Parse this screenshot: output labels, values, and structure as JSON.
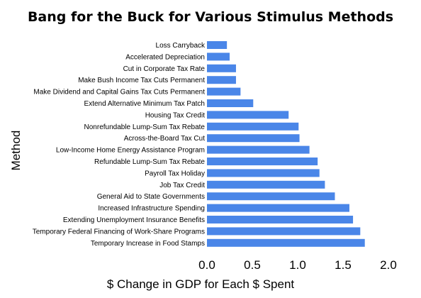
{
  "chart_data": {
    "type": "bar",
    "orientation": "horizontal",
    "title": "Bang for the Buck for Various Stimulus Methods",
    "xlabel": "$ Change in GDP for Each $ Spent",
    "ylabel": "Method",
    "xlim": [
      0.0,
      2.0
    ],
    "xticks": [
      "0.0",
      "0.5",
      "1.0",
      "1.5",
      "2.0"
    ],
    "grid": false,
    "legend": "none",
    "bar_color": "#4a86e8",
    "categories": [
      "Loss Carryback",
      "Accelerated Depreciation",
      "Cut in Corporate Tax Rate",
      "Make Bush Income Tax Cuts Permanent",
      "Make Dividend and Capital Gains Tax Cuts Permanent",
      "Extend Alternative Minimum Tax Patch",
      "Housing Tax Credit",
      "Nonrefundable Lump-Sum Tax Rebate",
      "Across-the-Board Tax Cut",
      "Low-Income Home Energy Assistance Program",
      "Refundable Lump-Sum Tax Rebate",
      "Payroll Tax Holiday",
      "Job Tax Credit",
      "General Aid to State Governments",
      "Increased Infrastructure Spending",
      "Extending Unemployment Insurance Benefits",
      "Temporary Federal Financing of Work-Share Programs",
      "Temporary Increase in Food Stamps"
    ],
    "values": [
      0.22,
      0.25,
      0.32,
      0.32,
      0.37,
      0.51,
      0.9,
      1.01,
      1.02,
      1.13,
      1.22,
      1.24,
      1.3,
      1.41,
      1.57,
      1.61,
      1.69,
      1.74
    ]
  }
}
